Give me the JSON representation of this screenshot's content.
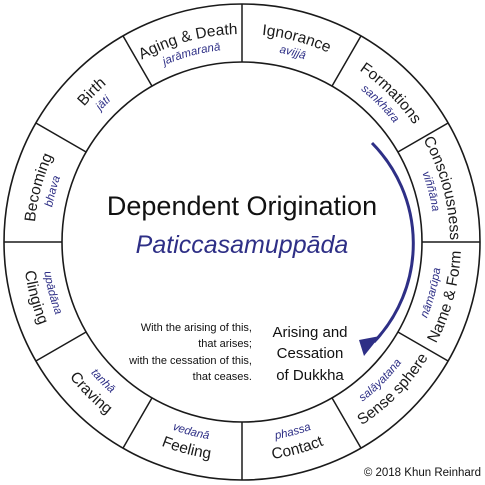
{
  "diagram": {
    "title": "Dependent Origination",
    "subtitle": "Paticcasamuppāda",
    "note_lines": [
      "With the arising of this,",
      "that arises;",
      "with the cessation of this,",
      "that ceases."
    ],
    "cycle_label_lines": [
      "Arising and",
      "Cessation",
      "of Dukkha"
    ],
    "copyright": "© 2018 Khun Reinhard",
    "arrow_color": "#2e2f86",
    "pali_color": "#2e2f86",
    "links": [
      {
        "en": "Ignorance",
        "pali": "avijjā"
      },
      {
        "en": "Formations",
        "pali": "sankhāra"
      },
      {
        "en": "Consciousness",
        "pali": "viññāna"
      },
      {
        "en": "Name & Form",
        "pali": "nāmarūpa"
      },
      {
        "en": "6 Sense spheres",
        "pali": "salāyatana"
      },
      {
        "en": "Contact",
        "pali": "phassa"
      },
      {
        "en": "Feeling",
        "pali": "vedanā"
      },
      {
        "en": "Craving",
        "pali": "tanhā"
      },
      {
        "en": "Clinging",
        "pali": "upādāna"
      },
      {
        "en": "Becoming",
        "pali": "bhava"
      },
      {
        "en": "Birth",
        "pali": "jāti"
      },
      {
        "en": "Aging & Death",
        "pali": "jarāmaranā"
      }
    ]
  }
}
